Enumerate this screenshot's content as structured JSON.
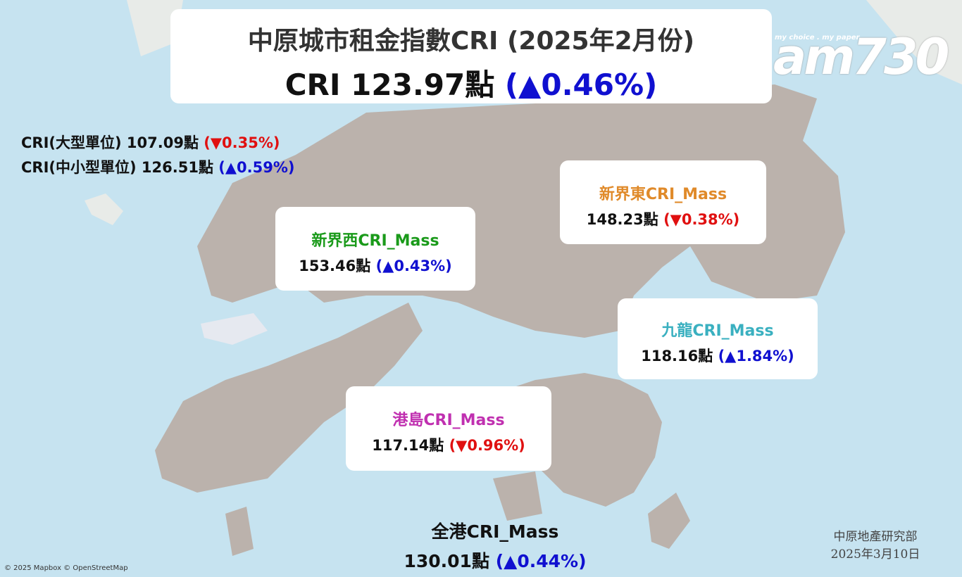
{
  "header": {
    "title": "中原城市租金指數CRI (2025年2月份)",
    "main": {
      "label": "CRI",
      "index": "123.97點",
      "change": "(▲0.46%)"
    }
  },
  "sub_indices": [
    {
      "label": "CRI(大型單位)",
      "index": "107.09點",
      "change": "(▼0.35%)"
    },
    {
      "label": "CRI(中小型單位)",
      "index": "126.51點",
      "change": "(▲0.59%)"
    }
  ],
  "regions": [
    {
      "name": "新界西CRI_Mass",
      "index": "153.46點",
      "change": "(▲0.43%)"
    },
    {
      "name": "新界東CRI_Mass",
      "index": "148.23點",
      "change": "(▼0.38%)"
    },
    {
      "name": "九龍CRI_Mass",
      "index": "118.16點",
      "change": "(▲1.84%)"
    },
    {
      "name": "港島CRI_Mass",
      "index": "117.14點",
      "change": "(▼0.96%)"
    }
  ],
  "overall": {
    "name": "全港CRI_Mass",
    "index": "130.01點",
    "change": "(▲0.44%)"
  },
  "footer": {
    "source": "中原地產研究部",
    "date": "2025年3月10日",
    "attribution": "© 2025 Mapbox © OpenStreetMap"
  },
  "logo": {
    "tagline": "my choice . my paper",
    "name": "am730"
  }
}
